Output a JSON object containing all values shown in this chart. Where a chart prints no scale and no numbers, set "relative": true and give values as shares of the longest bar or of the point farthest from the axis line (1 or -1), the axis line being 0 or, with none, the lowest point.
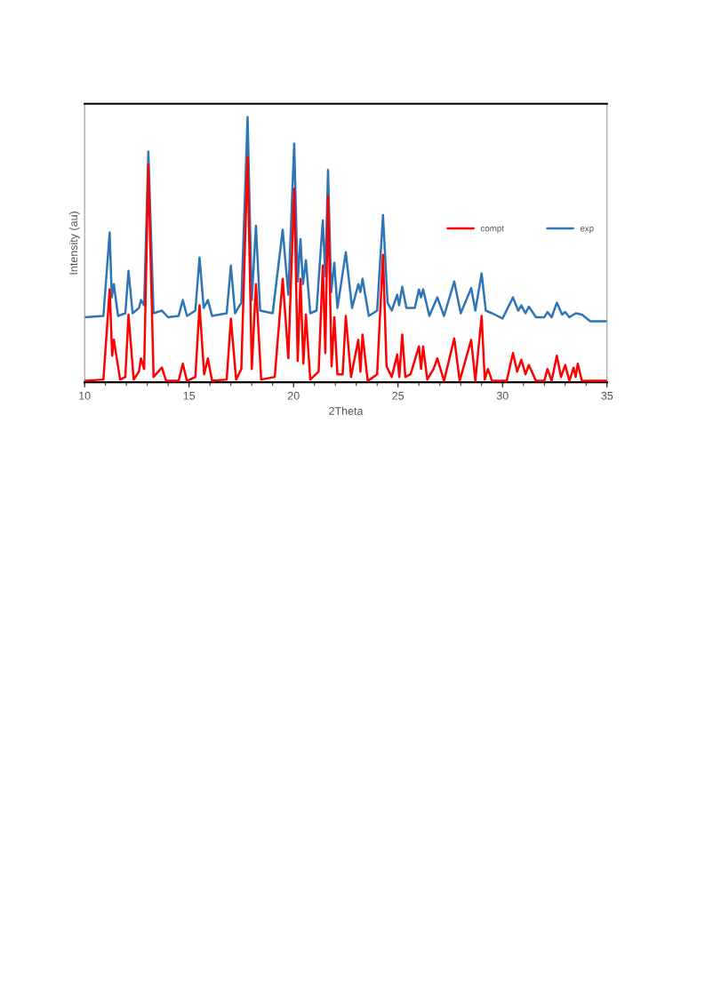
{
  "chart_data": {
    "type": "line",
    "xlabel": "2Theta",
    "ylabel": "Intensity (au)",
    "relative": true,
    "xlim": [
      10,
      35
    ],
    "xticks": [
      10,
      15,
      20,
      25,
      30,
      35
    ],
    "legend": "right",
    "grid": false,
    "marker": "none",
    "line_style": "solid",
    "series": [
      {
        "name": "compt",
        "color": "#ff0000",
        "x": [
          10,
          10.9,
          11.2,
          11.32,
          11.4,
          11.7,
          11.95,
          12.1,
          12.35,
          12.6,
          12.7,
          12.85,
          13.05,
          13.3,
          13.7,
          13.9,
          14.5,
          14.7,
          14.9,
          15.3,
          15.5,
          15.72,
          15.9,
          16.1,
          16.8,
          17.0,
          17.25,
          17.5,
          17.8,
          18.0,
          18.2,
          18.45,
          19.1,
          19.48,
          19.75,
          20.03,
          20.2,
          20.33,
          20.47,
          20.59,
          20.8,
          21.2,
          21.4,
          21.52,
          21.65,
          21.82,
          21.95,
          22.1,
          22.35,
          22.5,
          22.75,
          23.1,
          23.2,
          23.3,
          23.55,
          24.0,
          24.28,
          24.45,
          24.7,
          24.96,
          25.06,
          25.2,
          25.35,
          25.6,
          26.0,
          26.1,
          26.2,
          26.4,
          26.7,
          26.88,
          27.2,
          27.69,
          27.95,
          28.5,
          28.7,
          29.0,
          29.15,
          29.3,
          29.5,
          30.2,
          30.5,
          30.7,
          30.9,
          31.1,
          31.26,
          31.6,
          32.0,
          32.15,
          32.35,
          32.6,
          32.8,
          33.0,
          33.2,
          33.4,
          33.5,
          33.6,
          33.8,
          35
        ],
        "values": [
          0.005,
          0.01,
          0.35,
          0.1,
          0.16,
          0.01,
          0.02,
          0.255,
          0.01,
          0.04,
          0.09,
          0.05,
          0.82,
          0.02,
          0.055,
          0.005,
          0.005,
          0.07,
          0.005,
          0.02,
          0.29,
          0.03,
          0.09,
          0.005,
          0.01,
          0.24,
          0.01,
          0.05,
          0.85,
          0.05,
          0.37,
          0.01,
          0.02,
          0.39,
          0.09,
          0.73,
          0.08,
          0.39,
          0.07,
          0.255,
          0.01,
          0.04,
          0.44,
          0.11,
          0.7,
          0.06,
          0.245,
          0.03,
          0.03,
          0.25,
          0.02,
          0.16,
          0.04,
          0.18,
          0.005,
          0.03,
          0.48,
          0.06,
          0.02,
          0.105,
          0.02,
          0.18,
          0.02,
          0.03,
          0.135,
          0.05,
          0.135,
          0.01,
          0.05,
          0.09,
          0.005,
          0.165,
          0.005,
          0.16,
          0.005,
          0.25,
          0.01,
          0.05,
          0.005,
          0.005,
          0.11,
          0.04,
          0.085,
          0.03,
          0.065,
          0.005,
          0.005,
          0.05,
          0.005,
          0.1,
          0.02,
          0.065,
          0.005,
          0.055,
          0.02,
          0.07,
          0.005,
          0.005
        ]
      },
      {
        "name": "exp",
        "color": "#2e75b6",
        "x": [
          10,
          10.9,
          11.2,
          11.3,
          11.4,
          11.6,
          11.95,
          12.1,
          12.3,
          12.6,
          12.7,
          12.85,
          13.05,
          13.3,
          13.7,
          14.0,
          14.5,
          14.7,
          14.9,
          15.3,
          15.5,
          15.7,
          15.9,
          16.1,
          16.8,
          17.0,
          17.2,
          17.5,
          17.8,
          18.0,
          18.2,
          18.4,
          19.0,
          19.48,
          19.75,
          20.03,
          20.2,
          20.33,
          20.45,
          20.59,
          20.8,
          21.1,
          21.4,
          21.52,
          21.65,
          21.8,
          21.95,
          22.1,
          22.5,
          22.8,
          23.1,
          23.2,
          23.3,
          23.6,
          24.0,
          24.28,
          24.5,
          24.7,
          24.96,
          25.05,
          25.2,
          25.4,
          25.8,
          26.0,
          26.1,
          26.2,
          26.5,
          26.88,
          27.2,
          27.69,
          28.0,
          28.5,
          28.7,
          29.0,
          29.2,
          29.5,
          30.0,
          30.5,
          30.75,
          30.9,
          31.1,
          31.26,
          31.6,
          32.0,
          32.15,
          32.35,
          32.6,
          32.85,
          33.0,
          33.2,
          33.5,
          33.8,
          34.2,
          35
        ],
        "values": [
          0.245,
          0.25,
          0.565,
          0.32,
          0.37,
          0.25,
          0.26,
          0.42,
          0.26,
          0.28,
          0.31,
          0.29,
          0.87,
          0.26,
          0.27,
          0.245,
          0.25,
          0.31,
          0.25,
          0.27,
          0.47,
          0.28,
          0.31,
          0.25,
          0.26,
          0.44,
          0.26,
          0.3,
          1.0,
          0.31,
          0.59,
          0.27,
          0.26,
          0.575,
          0.33,
          0.9,
          0.38,
          0.54,
          0.37,
          0.46,
          0.26,
          0.27,
          0.61,
          0.4,
          0.8,
          0.34,
          0.45,
          0.28,
          0.49,
          0.28,
          0.37,
          0.34,
          0.39,
          0.25,
          0.27,
          0.63,
          0.3,
          0.27,
          0.33,
          0.29,
          0.36,
          0.28,
          0.28,
          0.35,
          0.32,
          0.35,
          0.25,
          0.32,
          0.25,
          0.38,
          0.26,
          0.355,
          0.27,
          0.41,
          0.27,
          0.26,
          0.24,
          0.32,
          0.27,
          0.29,
          0.26,
          0.285,
          0.245,
          0.245,
          0.265,
          0.245,
          0.3,
          0.255,
          0.265,
          0.245,
          0.26,
          0.255,
          0.23,
          0.23
        ]
      }
    ]
  }
}
